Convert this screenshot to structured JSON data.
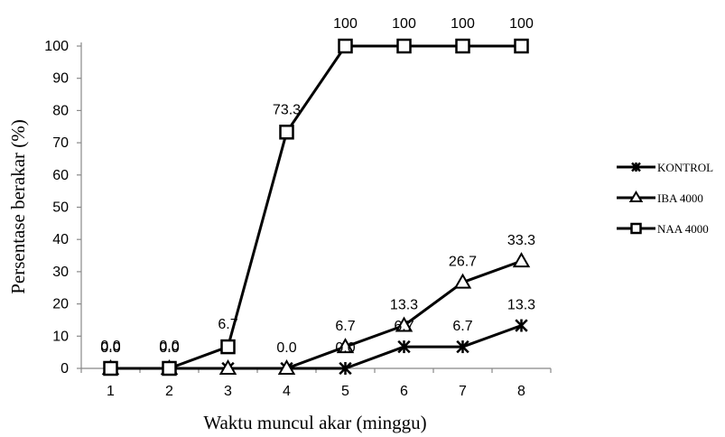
{
  "chart_data": {
    "type": "line",
    "title": "",
    "xlabel": "Waktu muncul akar (minggu)",
    "ylabel": "Persentase berakar (%)",
    "x": [
      1,
      2,
      3,
      4,
      5,
      6,
      7,
      8
    ],
    "ylim": [
      0,
      100
    ],
    "yticks": [
      0,
      10,
      20,
      30,
      40,
      50,
      60,
      70,
      80,
      90,
      100
    ],
    "grid": false,
    "legend_position": "right",
    "series": [
      {
        "name": "KONTROL",
        "marker": "asterisk",
        "values": [
          0,
          0,
          0,
          0,
          0,
          6.7,
          6.7,
          13.3
        ],
        "labels": [
          "0.0",
          "0.0",
          "",
          "0.0",
          "0.0",
          "6.7",
          "6.7",
          "13.3"
        ]
      },
      {
        "name": "IBA 4000",
        "marker": "triangle",
        "values": [
          0,
          0,
          0,
          0,
          6.7,
          13.3,
          26.7,
          33.3
        ],
        "labels": [
          "0.0",
          "0.0",
          "",
          "",
          "6.7",
          "13.3",
          "26.7",
          "33.3"
        ]
      },
      {
        "name": "NAA 4000",
        "marker": "square",
        "values": [
          0,
          0,
          6.7,
          73.3,
          100,
          100,
          100,
          100
        ],
        "labels": [
          "0.0",
          "0.0",
          "6.7",
          "73.3",
          "100",
          "100",
          "100",
          "100"
        ]
      }
    ]
  }
}
